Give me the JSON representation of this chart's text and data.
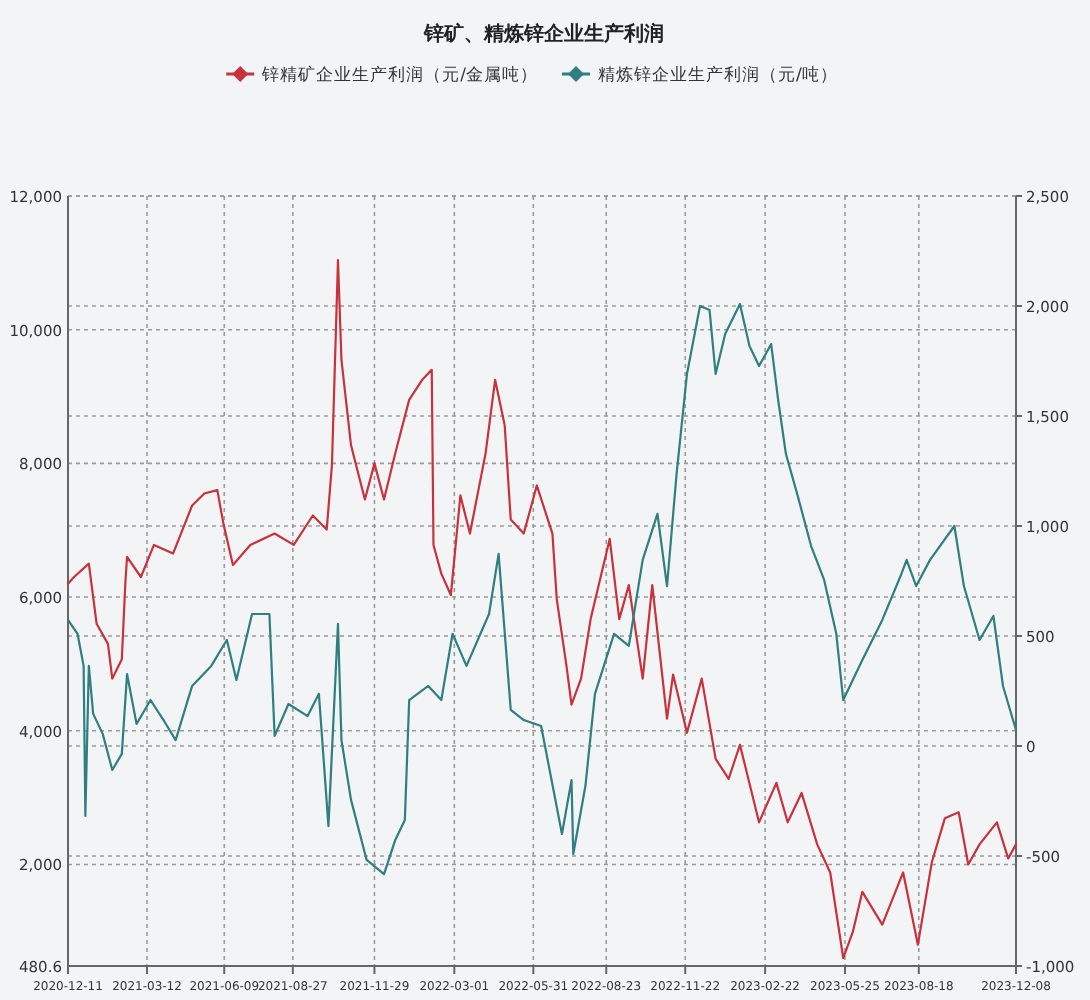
{
  "chart_data": {
    "type": "line",
    "title": "锌矿、精炼锌企业生产利润",
    "series": [
      {
        "name": "锌精矿企业生产利润（元/金属吨）",
        "color": "#c8323c",
        "x": [
          "2020-12-11",
          "2020-12-18",
          "2021-01-04",
          "2021-01-13",
          "2021-01-26",
          "2021-01-31",
          "2021-02-11",
          "2021-02-15",
          "2021-02-17",
          "2021-03-05",
          "2021-03-20",
          "2021-04-11",
          "2021-05-03",
          "2021-05-17",
          "2021-06-01",
          "2021-06-08",
          "2021-06-19",
          "2021-07-09",
          "2021-08-06",
          "2021-08-28",
          "2021-09-19",
          "2021-10-05",
          "2021-10-11",
          "2021-10-18",
          "2021-10-22",
          "2021-11-02",
          "2021-11-18",
          "2021-11-29",
          "2021-12-10",
          "2021-12-23",
          "2022-01-08",
          "2022-01-23",
          "2022-02-03",
          "2022-02-05",
          "2022-02-14",
          "2022-02-25",
          "2022-03-08",
          "2022-03-19",
          "2022-04-06",
          "2022-04-17",
          "2022-04-28",
          "2022-05-05",
          "2022-05-20",
          "2022-06-04",
          "2022-06-22",
          "2022-06-27",
          "2022-07-08",
          "2022-07-14",
          "2022-07-25",
          "2022-08-05",
          "2022-08-16",
          "2022-08-27",
          "2022-09-07",
          "2022-09-18",
          "2022-10-04",
          "2022-10-15",
          "2022-11-01",
          "2022-11-08",
          "2022-11-24",
          "2022-12-11",
          "2022-12-27",
          "2023-01-11",
          "2023-01-24",
          "2023-02-15",
          "2023-03-07",
          "2023-03-20",
          "2023-04-05",
          "2023-04-23",
          "2023-05-08",
          "2023-05-23",
          "2023-06-03",
          "2023-06-14",
          "2023-07-07",
          "2023-07-31",
          "2023-08-17",
          "2023-09-02",
          "2023-09-17",
          "2023-10-03",
          "2023-10-14",
          "2023-10-27",
          "2023-11-16",
          "2023-11-29",
          "2023-12-08"
        ],
        "values": [
          6200,
          6300,
          6500,
          5600,
          5300,
          4780,
          5070,
          6200,
          6600,
          6300,
          6780,
          6650,
          7370,
          7550,
          7600,
          7100,
          6480,
          6780,
          6950,
          6780,
          7220,
          7010,
          7970,
          11040,
          9550,
          8270,
          7460,
          8000,
          7460,
          8150,
          8950,
          9250,
          9400,
          6780,
          6350,
          6030,
          7520,
          6950,
          8150,
          9250,
          8570,
          7160,
          6950,
          7670,
          6950,
          5970,
          4990,
          4390,
          4780,
          5670,
          6270,
          6870,
          5670,
          6180,
          4780,
          6180,
          4180,
          4840,
          3970,
          4780,
          3580,
          3280,
          3790,
          2630,
          3220,
          2630,
          3070,
          2300,
          1880,
          600,
          990,
          1590,
          1100,
          1880,
          800,
          2030,
          2690,
          2780,
          2000,
          2300,
          2630,
          2090,
          2300
        ]
      },
      {
        "name": "精炼锌企业生产利润（元/吨）",
        "color": "#2f7f80",
        "axis": "y2",
        "x": [
          "2020-12-11",
          "2020-12-22",
          "2020-12-29",
          "2020-12-31",
          "2021-01-04",
          "2021-01-09",
          "2021-01-20",
          "2021-01-31",
          "2021-02-11",
          "2021-02-17",
          "2021-02-28",
          "2021-03-16",
          "2021-03-31",
          "2021-04-14",
          "2021-05-03",
          "2021-05-25",
          "2021-06-12",
          "2021-06-23",
          "2021-07-11",
          "2021-07-31",
          "2021-08-06",
          "2021-08-22",
          "2021-09-13",
          "2021-09-26",
          "2021-10-07",
          "2021-10-18",
          "2021-10-22",
          "2021-11-02",
          "2021-11-20",
          "2021-12-10",
          "2021-12-23",
          "2022-01-03",
          "2022-01-08",
          "2022-01-30",
          "2022-02-14",
          "2022-02-27",
          "2022-03-15",
          "2022-04-10",
          "2022-04-21",
          "2022-05-05",
          "2022-05-20",
          "2022-06-09",
          "2022-07-03",
          "2022-07-14",
          "2022-07-16",
          "2022-07-30",
          "2022-08-10",
          "2022-09-01",
          "2022-09-18",
          "2022-10-04",
          "2022-10-21",
          "2022-11-01",
          "2022-11-12",
          "2022-11-24",
          "2022-12-09",
          "2022-12-20",
          "2022-12-27",
          "2023-01-07",
          "2023-01-24",
          "2023-02-04",
          "2023-02-15",
          "2023-03-01",
          "2023-03-09",
          "2023-03-18",
          "2023-03-31",
          "2023-04-16",
          "2023-05-01",
          "2023-05-15",
          "2023-05-23",
          "2023-06-14",
          "2023-07-07",
          "2023-07-29",
          "2023-08-04",
          "2023-08-15",
          "2023-08-31",
          "2023-09-28",
          "2023-10-09",
          "2023-10-27",
          "2023-11-12",
          "2023-11-23",
          "2023-12-08"
        ],
        "values": [
          573,
          510,
          364,
          -318,
          364,
          146,
          55,
          -109,
          -36,
          327,
          100,
          209,
          118,
          27,
          273,
          364,
          482,
          300,
          600,
          600,
          46,
          191,
          136,
          237,
          -364,
          555,
          27,
          -245,
          -518,
          -582,
          -427,
          -336,
          209,
          273,
          209,
          510,
          364,
          600,
          873,
          164,
          118,
          91,
          -400,
          -155,
          -491,
          -182,
          237,
          510,
          455,
          846,
          1055,
          727,
          1236,
          1691,
          2000,
          1982,
          1691,
          1873,
          2009,
          1818,
          1727,
          1827,
          1573,
          1327,
          1145,
          909,
          755,
          510,
          209,
          391,
          573,
          782,
          846,
          727,
          846,
          1000,
          727,
          482,
          591,
          273,
          73
        ]
      }
    ],
    "xlim": [
      "2020-12-11",
      "2023-12-08"
    ],
    "xticks": [
      "2020-12-11",
      "2021-03-12",
      "2021-06-09",
      "2021-08-27",
      "2021-11-29",
      "2022-03-01",
      "2022-05-31",
      "2022-08-23",
      "2022-11-22",
      "2023-02-22",
      "2023-05-25",
      "2023-08-18",
      "2023-12-08"
    ],
    "ylim": [
      480.6,
      12000
    ],
    "yticks": [
      480.6,
      {
        "value": 2000,
        "label": "2,000"
      },
      {
        "value": 4000,
        "label": "4,000"
      },
      {
        "value": 6000,
        "label": "6,000"
      },
      {
        "value": 8000,
        "label": "8,000"
      },
      {
        "value": 10000,
        "label": "10,000"
      },
      {
        "value": 12000,
        "label": "12,000"
      }
    ],
    "y2lim": [
      -1000,
      2500
    ],
    "y2ticks": [
      {
        "value": -1000,
        "label": "-1,000"
      },
      -500,
      0,
      500,
      {
        "value": 1000,
        "label": "1,000"
      },
      {
        "value": 1500,
        "label": "1,500"
      },
      {
        "value": 2000,
        "label": "2,000"
      },
      {
        "value": 2500,
        "label": "2,500"
      }
    ],
    "grid": true,
    "legend": "top",
    "marker": "none",
    "line_style": "solid"
  }
}
